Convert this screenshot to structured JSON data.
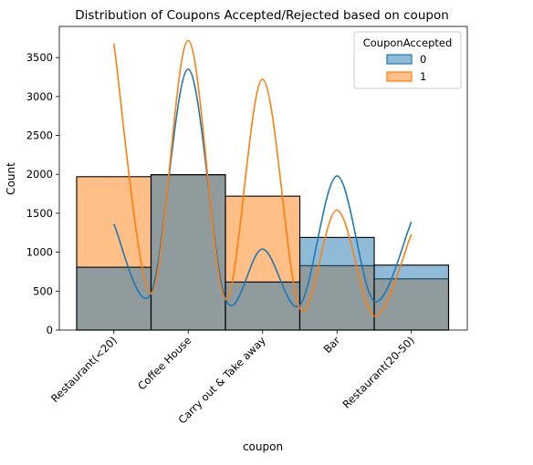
{
  "chart_data": {
    "type": "bar",
    "title": "Distribution of Coupons Accepted/Rejected based on coupon",
    "xlabel": "coupon",
    "ylabel": "Count",
    "categories": [
      "Restaurant(<20)",
      "Coffee House",
      "Carry out & Take away",
      "Bar",
      "Restaurant(20-50)"
    ],
    "ylim": [
      0,
      3900
    ],
    "yticks": [
      0,
      500,
      1000,
      1500,
      2000,
      2500,
      3000,
      3500
    ],
    "stacking": "overlay",
    "kde": true,
    "legend": {
      "title": "CouponAccepted",
      "position": "top-right"
    },
    "series": [
      {
        "name": "0",
        "color": "#1f77b4",
        "values": [
          807,
          1995,
          617,
          1190,
          834
        ],
        "kde_values": [
          1360,
          3350,
          1040,
          1980,
          1390
        ]
      },
      {
        "name": "1",
        "color": "#ff7f0e",
        "values": [
          1970,
          1995,
          1720,
          827,
          658
        ],
        "kde_values": [
          3680,
          3720,
          3220,
          1540,
          1230
        ]
      }
    ],
    "grid": false
  }
}
